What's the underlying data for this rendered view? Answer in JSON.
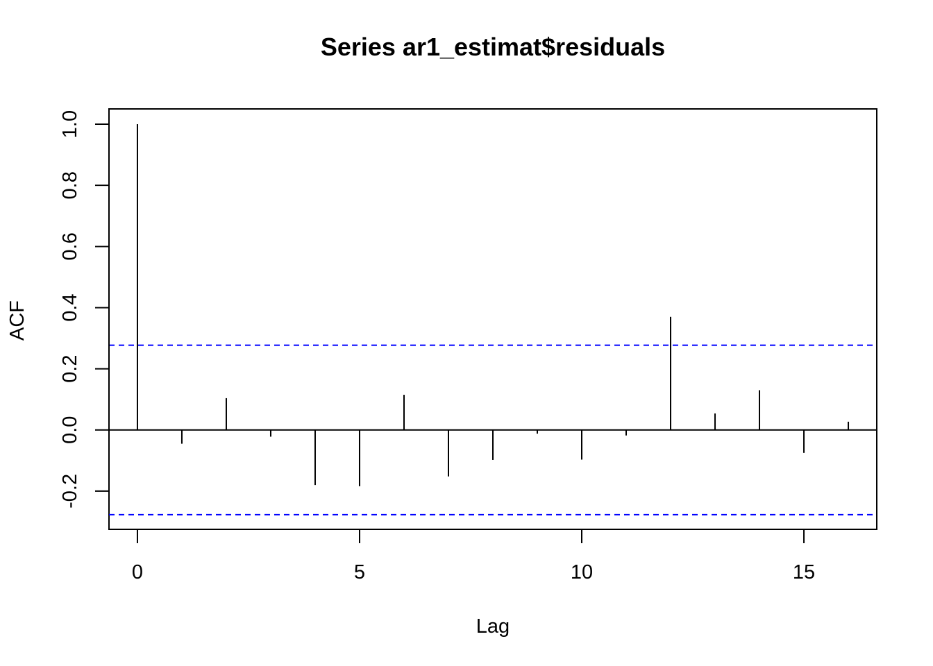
{
  "chart_data": {
    "type": "bar",
    "title": "Series  ar1_estimat$residuals",
    "xlabel": "Lag",
    "ylabel": "ACF",
    "xlim": [
      -0.64,
      16.64
    ],
    "ylim": [
      -0.325,
      1.05
    ],
    "x_ticks": [
      0,
      5,
      10,
      15
    ],
    "x_tick_labels": [
      "0",
      "5",
      "10",
      "15"
    ],
    "y_ticks": [
      -0.2,
      0.0,
      0.2,
      0.4,
      0.6,
      0.8,
      1.0
    ],
    "y_tick_labels": [
      "-0.2",
      "0.0",
      "0.2",
      "0.4",
      "0.6",
      "0.8",
      "1.0"
    ],
    "grid": false,
    "lags": [
      0,
      1,
      2,
      3,
      4,
      5,
      6,
      7,
      8,
      9,
      10,
      11,
      12,
      13,
      14,
      15,
      16
    ],
    "acf": [
      1.0,
      -0.045,
      0.104,
      -0.022,
      -0.18,
      -0.184,
      0.115,
      -0.152,
      -0.098,
      -0.012,
      -0.097,
      -0.018,
      0.37,
      0.054,
      0.13,
      -0.075,
      0.027
    ],
    "confidence_bounds": [
      0.277,
      -0.277
    ],
    "colors": {
      "bars": "#000000",
      "zero_line": "#000000",
      "confidence": "#0000ff",
      "frame": "#000000"
    }
  }
}
